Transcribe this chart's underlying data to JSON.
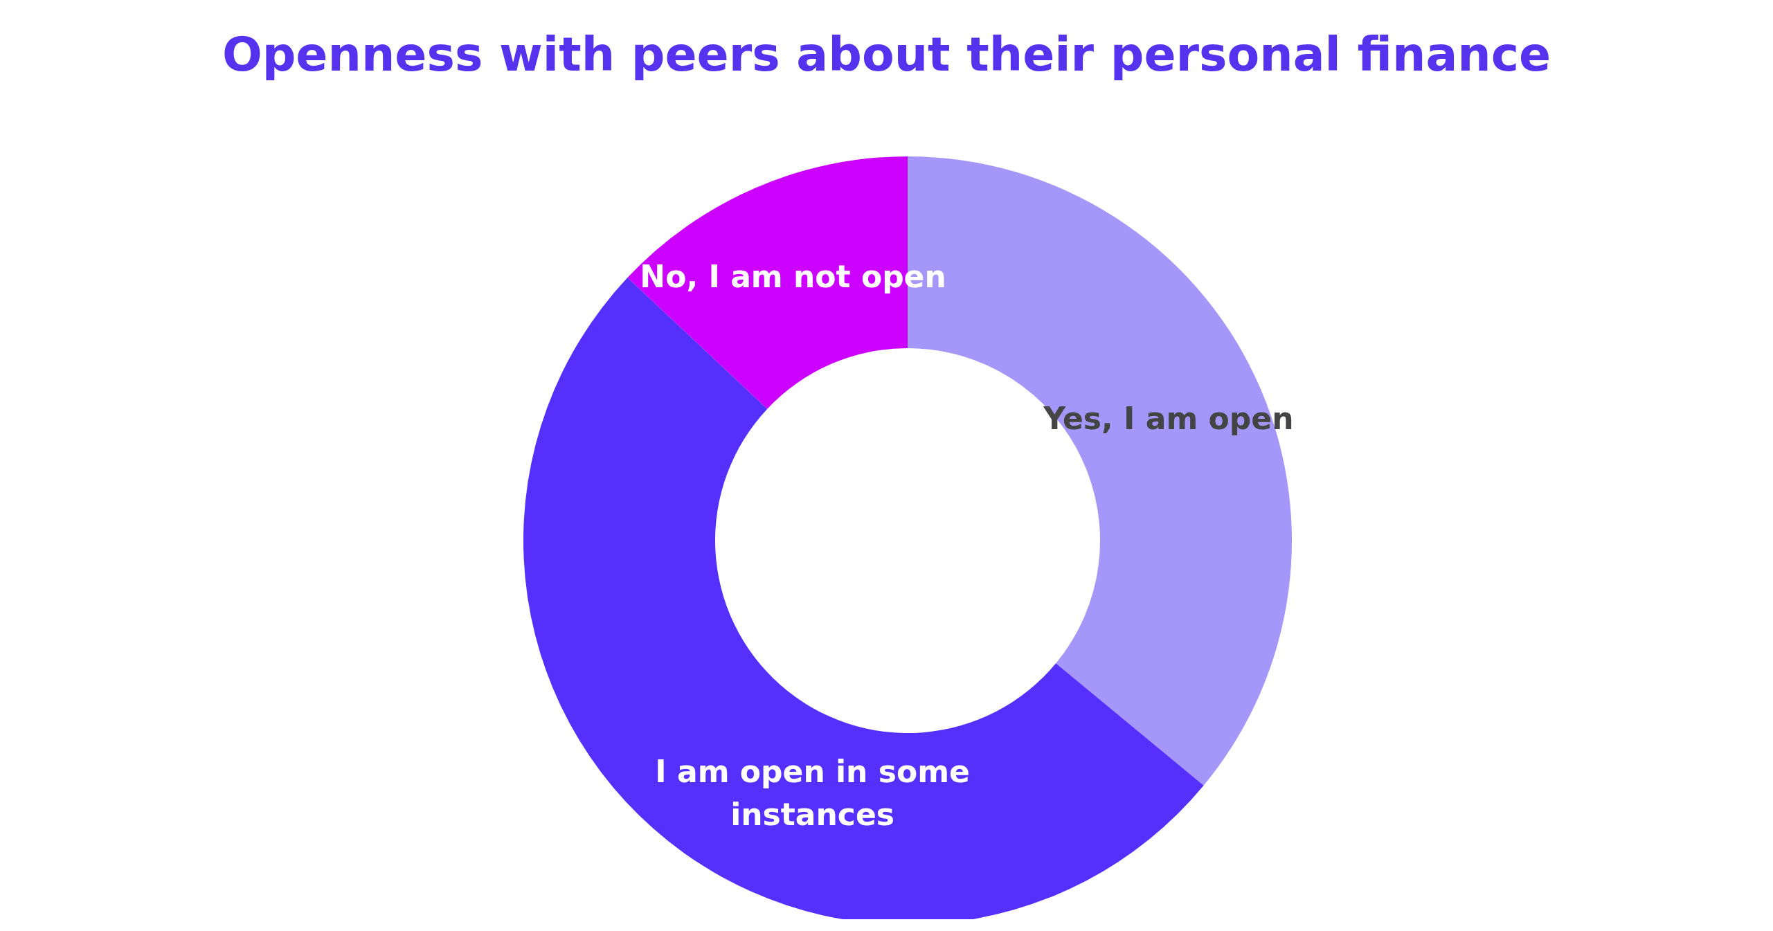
{
  "chart_data": {
    "type": "donut",
    "title": "Openness with peers about their personal finance",
    "categories": [
      "Yes, I am open",
      "I am open in some instances",
      "No, I am not open"
    ],
    "values": [
      36,
      51,
      13
    ],
    "colors": [
      "#a596f9",
      "#5530fc",
      "#cc00ff"
    ],
    "legend": false
  }
}
